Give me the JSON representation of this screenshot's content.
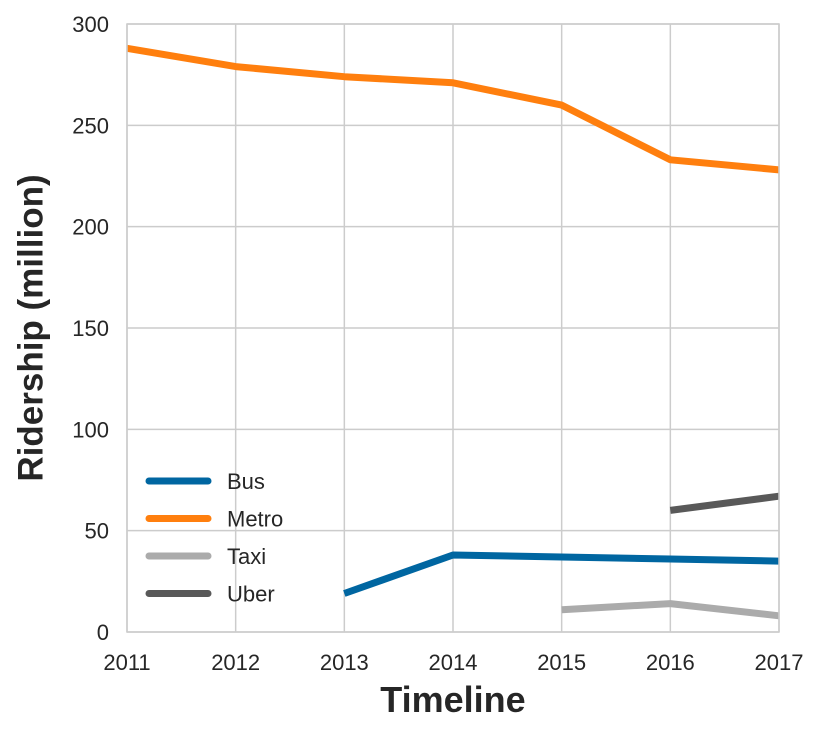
{
  "chart_data": {
    "type": "line",
    "title": "",
    "xlabel": "Timeline",
    "ylabel": "Ridership (million)",
    "xlim": [
      2011,
      2017
    ],
    "ylim": [
      0,
      300
    ],
    "xticks": [
      "2011",
      "2012",
      "2013",
      "2014",
      "2015",
      "2016",
      "2017"
    ],
    "yticks": [
      "0",
      "50",
      "100",
      "150",
      "200",
      "250",
      "300"
    ],
    "grid": true,
    "legend_position": "lower-left",
    "series": [
      {
        "name": "Bus",
        "color": "#0066a1",
        "points": [
          [
            2013,
            19
          ],
          [
            2014,
            38
          ],
          [
            2015,
            37
          ],
          [
            2016,
            36
          ],
          [
            2017,
            35
          ]
        ]
      },
      {
        "name": "Metro",
        "color": "#ff7f0e",
        "points": [
          [
            2011,
            288
          ],
          [
            2012,
            279
          ],
          [
            2013,
            274
          ],
          [
            2014,
            271
          ],
          [
            2015,
            260
          ],
          [
            2016,
            233
          ],
          [
            2017,
            228
          ]
        ]
      },
      {
        "name": "Taxi",
        "color": "#ababab",
        "points": [
          [
            2015,
            11
          ],
          [
            2016,
            14
          ],
          [
            2017,
            8
          ]
        ]
      },
      {
        "name": "Uber",
        "color": "#595959",
        "points": [
          [
            2016,
            60
          ],
          [
            2017,
            67
          ]
        ]
      }
    ]
  }
}
